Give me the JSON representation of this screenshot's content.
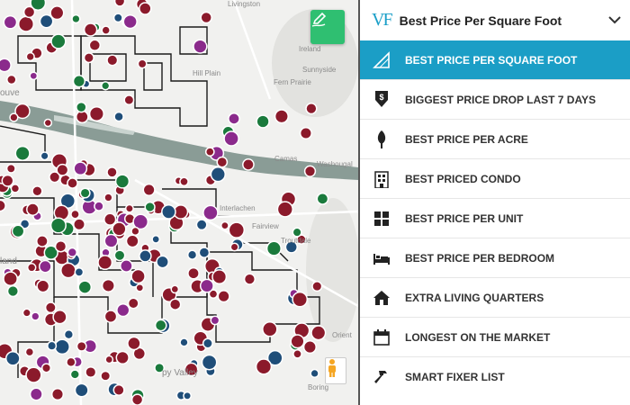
{
  "map": {
    "labels": {
      "livingston": "Livingston",
      "ireland": "Ireland",
      "sunnyside": "Sunnyside",
      "fern_prairie": "Fern Prairie",
      "camas": "Camas",
      "washougal": "Washougal",
      "interlachen": "Interlachen",
      "fairview": "Fairview",
      "troutdale": "Troutdale",
      "orient": "Orient",
      "boring": "Boring",
      "happy_valley": "py Valley",
      "vancouver": "ouve",
      "portland": "land",
      "hill_plain": "Hill Plain"
    },
    "draw_icon": "pencil-draw-icon",
    "streetview_icon": "pegman-icon",
    "marker_colors": {
      "maroon": "#8b1a2b",
      "purple": "#8b2a8c",
      "navy": "#1f4e79",
      "green": "#1a7a3c"
    }
  },
  "panel": {
    "logo_text": "VF",
    "selected_title": "Best Price Per Square Foot",
    "accent": "#1b9ec6",
    "options": [
      {
        "label": "Best Price Per Square Foot",
        "icon": "measure-triangle-icon",
        "selected": true
      },
      {
        "label": "Biggest Price Drop Last 7 Days",
        "icon": "price-drop-icon",
        "selected": false
      },
      {
        "label": "Best Price Per Acre",
        "icon": "tree-icon",
        "selected": false
      },
      {
        "label": "Best Priced Condo",
        "icon": "condo-building-icon",
        "selected": false
      },
      {
        "label": "Best Price Per Unit",
        "icon": "unit-grid-icon",
        "selected": false
      },
      {
        "label": "Best Price Per Bedroom",
        "icon": "bed-icon",
        "selected": false
      },
      {
        "label": "Extra Living Quarters",
        "icon": "house-icon",
        "selected": false
      },
      {
        "label": "Longest On The Market",
        "icon": "calendar-icon",
        "selected": false
      },
      {
        "label": "Smart Fixer List",
        "icon": "hammer-icon",
        "selected": false
      }
    ]
  }
}
